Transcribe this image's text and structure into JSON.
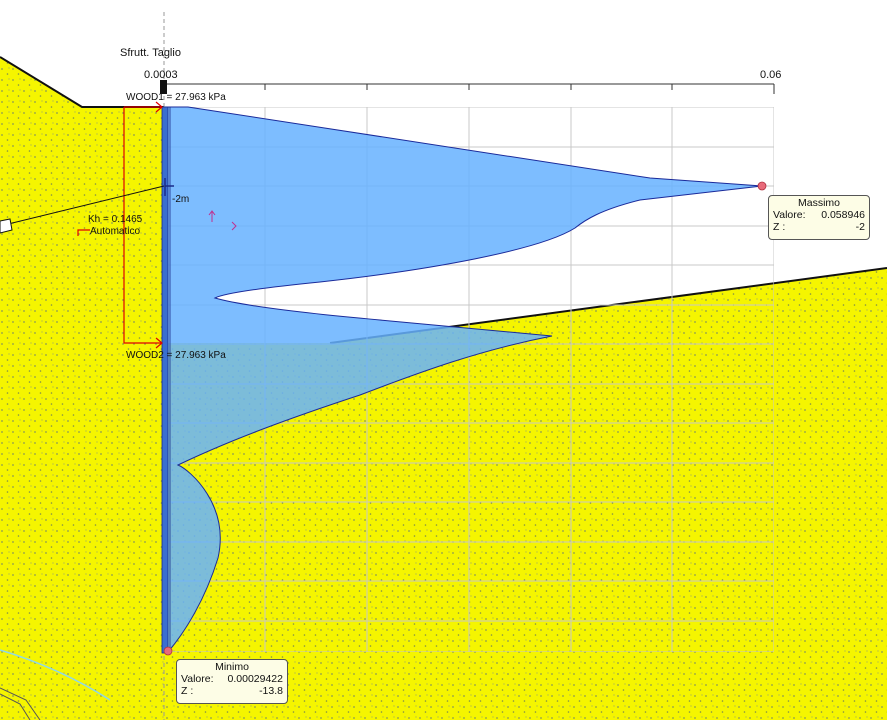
{
  "header": {
    "title": "Sfrutt. Taglio",
    "axis_min_label": "0.0003",
    "axis_max_label": "0.06"
  },
  "anchors": {
    "wood1": "WOOD1 = 27.963 kPa",
    "wood2": "WOOD2 = 27.963 kPa"
  },
  "annotations": {
    "depth_marker": "-2m",
    "kh_value": "Kh = 0.1465",
    "kh_mode": "Automatico"
  },
  "tooltips": {
    "max": {
      "title": "Massimo",
      "value_label": "Valore:",
      "value": "0.058946",
      "z_label": "Z :",
      "z": "-2"
    },
    "min": {
      "title": "Minimo",
      "value_label": "Valore:",
      "value": "0.00029422",
      "z_label": "Z :",
      "z": "-13.8"
    }
  },
  "colors": {
    "soil": "#f5f500",
    "soil_dots": "#8a9a55",
    "diagram_fill": "#7fbfff",
    "diagram_stroke": "#1a2a9a",
    "wall": "#3a6fd0",
    "anchor_red": "#e00000",
    "grid": "#c8c8c8"
  },
  "chart_data": {
    "type": "area",
    "title": "Sfrutt. Taglio",
    "xlabel": "",
    "ylabel": "",
    "xlim": [
      0.0003,
      0.06
    ],
    "ylim": [
      -13.8,
      0
    ],
    "max": {
      "value": 0.058946,
      "z": -2
    },
    "min": {
      "value": 0.00029422,
      "z": -13.8
    }
  }
}
